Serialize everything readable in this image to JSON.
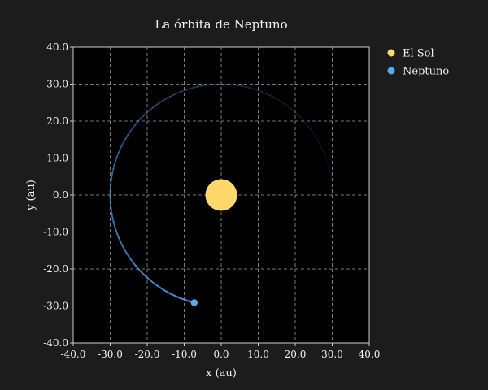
{
  "chart_data": {
    "type": "scatter",
    "title": "La órbita de Neptuno",
    "xlabel": "x (au)",
    "ylabel": "y (au)",
    "xlim": [
      -40,
      40
    ],
    "ylim": [
      -40,
      40
    ],
    "xticks": [
      "-40.0",
      "-30.0",
      "-20.0",
      "-10.0",
      "0.0",
      "10.0",
      "20.0",
      "30.0",
      "40.0"
    ],
    "yticks": [
      "40.0",
      "30.0",
      "20.0",
      "10.0",
      "0.0",
      "-10.0",
      "-20.0",
      "-30.0",
      "-40.0"
    ],
    "grid": true,
    "legend_position": "outside-top-right",
    "orbit_radius": 30,
    "trail_start_angle_deg": 0,
    "trail_end_angle_deg": 256,
    "series": [
      {
        "name": "El Sol",
        "x": [
          0
        ],
        "y": [
          0
        ],
        "color": "#ffd86b"
      },
      {
        "name": "Neptuno",
        "x": [
          -7.3
        ],
        "y": [
          -29.1
        ],
        "color": "#5aa9ee"
      }
    ],
    "colors": {
      "background": "#1c1c1c",
      "plot_background": "#000000",
      "grid": "#9a9a9a",
      "orbit": "#4a90d9"
    }
  }
}
